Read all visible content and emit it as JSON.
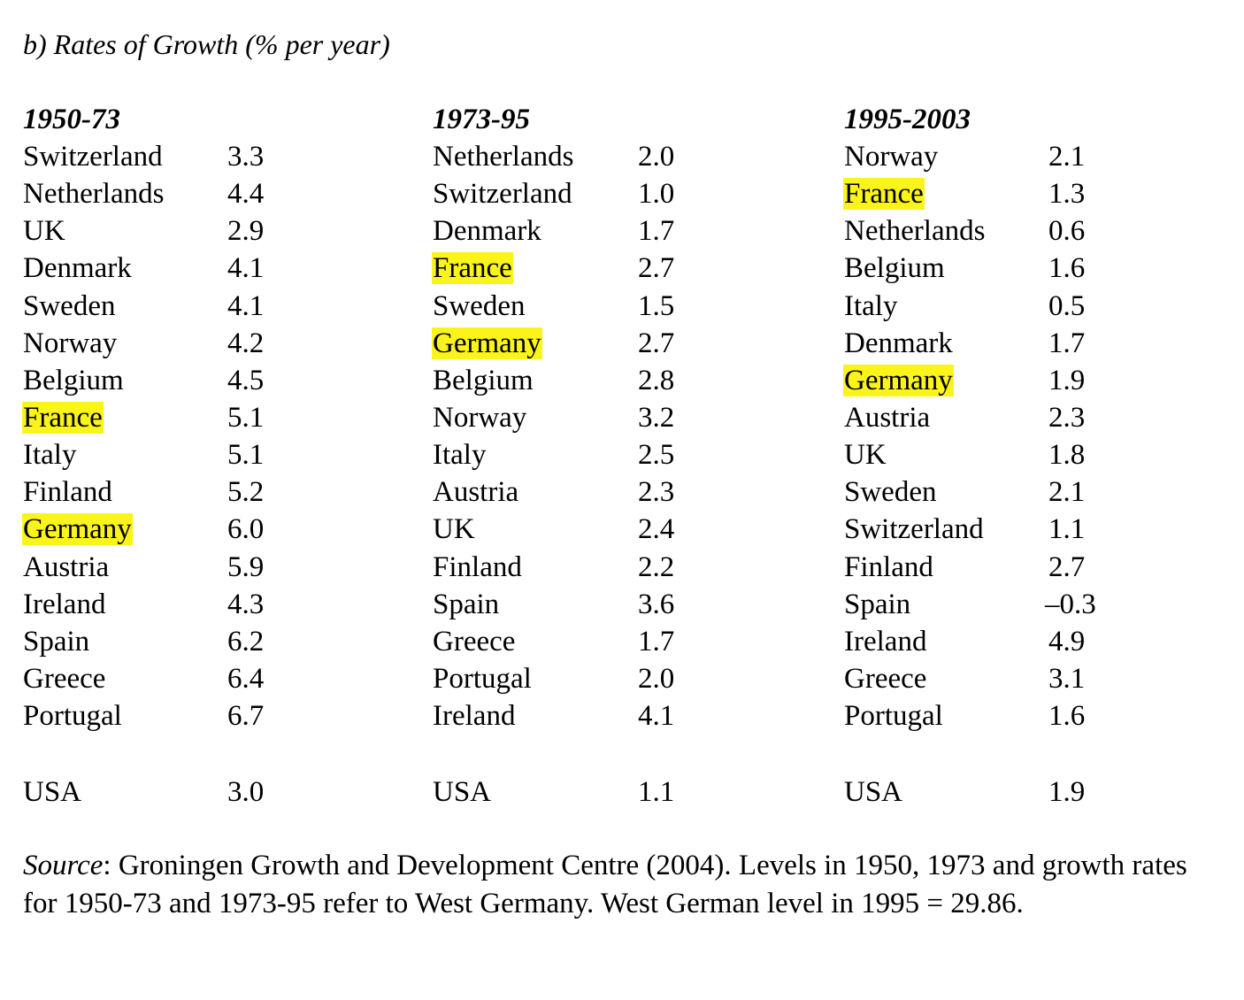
{
  "title": "b) Rates of Growth (% per year)",
  "columns": [
    {
      "period": "1950-73",
      "rows": [
        {
          "country": "Switzerland",
          "rate": "3.3",
          "highlight": false
        },
        {
          "country": "Netherlands",
          "rate": "4.4",
          "highlight": false
        },
        {
          "country": "UK",
          "rate": "2.9",
          "highlight": false
        },
        {
          "country": "Denmark",
          "rate": "4.1",
          "highlight": false
        },
        {
          "country": "Sweden",
          "rate": "4.1",
          "highlight": false
        },
        {
          "country": "Norway",
          "rate": "4.2",
          "highlight": false
        },
        {
          "country": "Belgium",
          "rate": "4.5",
          "highlight": false
        },
        {
          "country": "France",
          "rate": "5.1",
          "highlight": true
        },
        {
          "country": "Italy",
          "rate": "5.1",
          "highlight": false
        },
        {
          "country": "Finland",
          "rate": "5.2",
          "highlight": false
        },
        {
          "country": "Germany",
          "rate": "6.0",
          "highlight": true
        },
        {
          "country": "Austria",
          "rate": "5.9",
          "highlight": false
        },
        {
          "country": "Ireland",
          "rate": "4.3",
          "highlight": false
        },
        {
          "country": "Spain",
          "rate": "6.2",
          "highlight": false
        },
        {
          "country": "Greece",
          "rate": "6.4",
          "highlight": false
        },
        {
          "country": "Portugal",
          "rate": "6.7",
          "highlight": false
        }
      ],
      "usa": {
        "country": "USA",
        "rate": "3.0"
      }
    },
    {
      "period": "1973-95",
      "rows": [
        {
          "country": "Netherlands",
          "rate": "2.0",
          "highlight": false
        },
        {
          "country": "Switzerland",
          "rate": "1.0",
          "highlight": false
        },
        {
          "country": "Denmark",
          "rate": "1.7",
          "highlight": false
        },
        {
          "country": "France",
          "rate": "2.7",
          "highlight": true
        },
        {
          "country": "Sweden",
          "rate": "1.5",
          "highlight": false
        },
        {
          "country": "Germany",
          "rate": "2.7",
          "highlight": true
        },
        {
          "country": "Belgium",
          "rate": "2.8",
          "highlight": false
        },
        {
          "country": "Norway",
          "rate": "3.2",
          "highlight": false
        },
        {
          "country": "Italy",
          "rate": "2.5",
          "highlight": false
        },
        {
          "country": "Austria",
          "rate": "2.3",
          "highlight": false
        },
        {
          "country": "UK",
          "rate": "2.4",
          "highlight": false
        },
        {
          "country": "Finland",
          "rate": "2.2",
          "highlight": false
        },
        {
          "country": "Spain",
          "rate": "3.6",
          "highlight": false
        },
        {
          "country": "Greece",
          "rate": "1.7",
          "highlight": false
        },
        {
          "country": "Portugal",
          "rate": "2.0",
          "highlight": false
        },
        {
          "country": "Ireland",
          "rate": "4.1",
          "highlight": false
        }
      ],
      "usa": {
        "country": "USA",
        "rate": "1.1"
      }
    },
    {
      "period": "1995-2003",
      "rows": [
        {
          "country": "Norway",
          "rate": "2.1",
          "highlight": false
        },
        {
          "country": "France",
          "rate": "1.3",
          "highlight": true
        },
        {
          "country": "Netherlands",
          "rate": "0.6",
          "highlight": false
        },
        {
          "country": "Belgium",
          "rate": "1.6",
          "highlight": false
        },
        {
          "country": "Italy",
          "rate": "0.5",
          "highlight": false
        },
        {
          "country": "Denmark",
          "rate": "1.7",
          "highlight": false
        },
        {
          "country": "Germany",
          "rate": "1.9",
          "highlight": true
        },
        {
          "country": "Austria",
          "rate": "2.3",
          "highlight": false
        },
        {
          "country": "UK",
          "rate": "1.8",
          "highlight": false
        },
        {
          "country": "Sweden",
          "rate": "2.1",
          "highlight": false
        },
        {
          "country": "Switzerland",
          "rate": "1.1",
          "highlight": false
        },
        {
          "country": "Finland",
          "rate": "2.7",
          "highlight": false
        },
        {
          "country": "Spain",
          "rate": "–0.3",
          "highlight": false
        },
        {
          "country": "Ireland",
          "rate": "4.9",
          "highlight": false
        },
        {
          "country": "Greece",
          "rate": "3.1",
          "highlight": false
        },
        {
          "country": "Portugal",
          "rate": "1.6",
          "highlight": false
        }
      ],
      "usa": {
        "country": "USA",
        "rate": "1.9"
      }
    }
  ],
  "source": {
    "label": "Source",
    "text": ": Groningen Growth and Development Centre (2004).  Levels in 1950, 1973 and growth rates for 1950-73 and 1973-95 refer to West Germany.  West German level in 1995 = 29.86."
  },
  "colors": {
    "highlight": "#fbf41b",
    "text": "#000000",
    "background": "#ffffff"
  }
}
